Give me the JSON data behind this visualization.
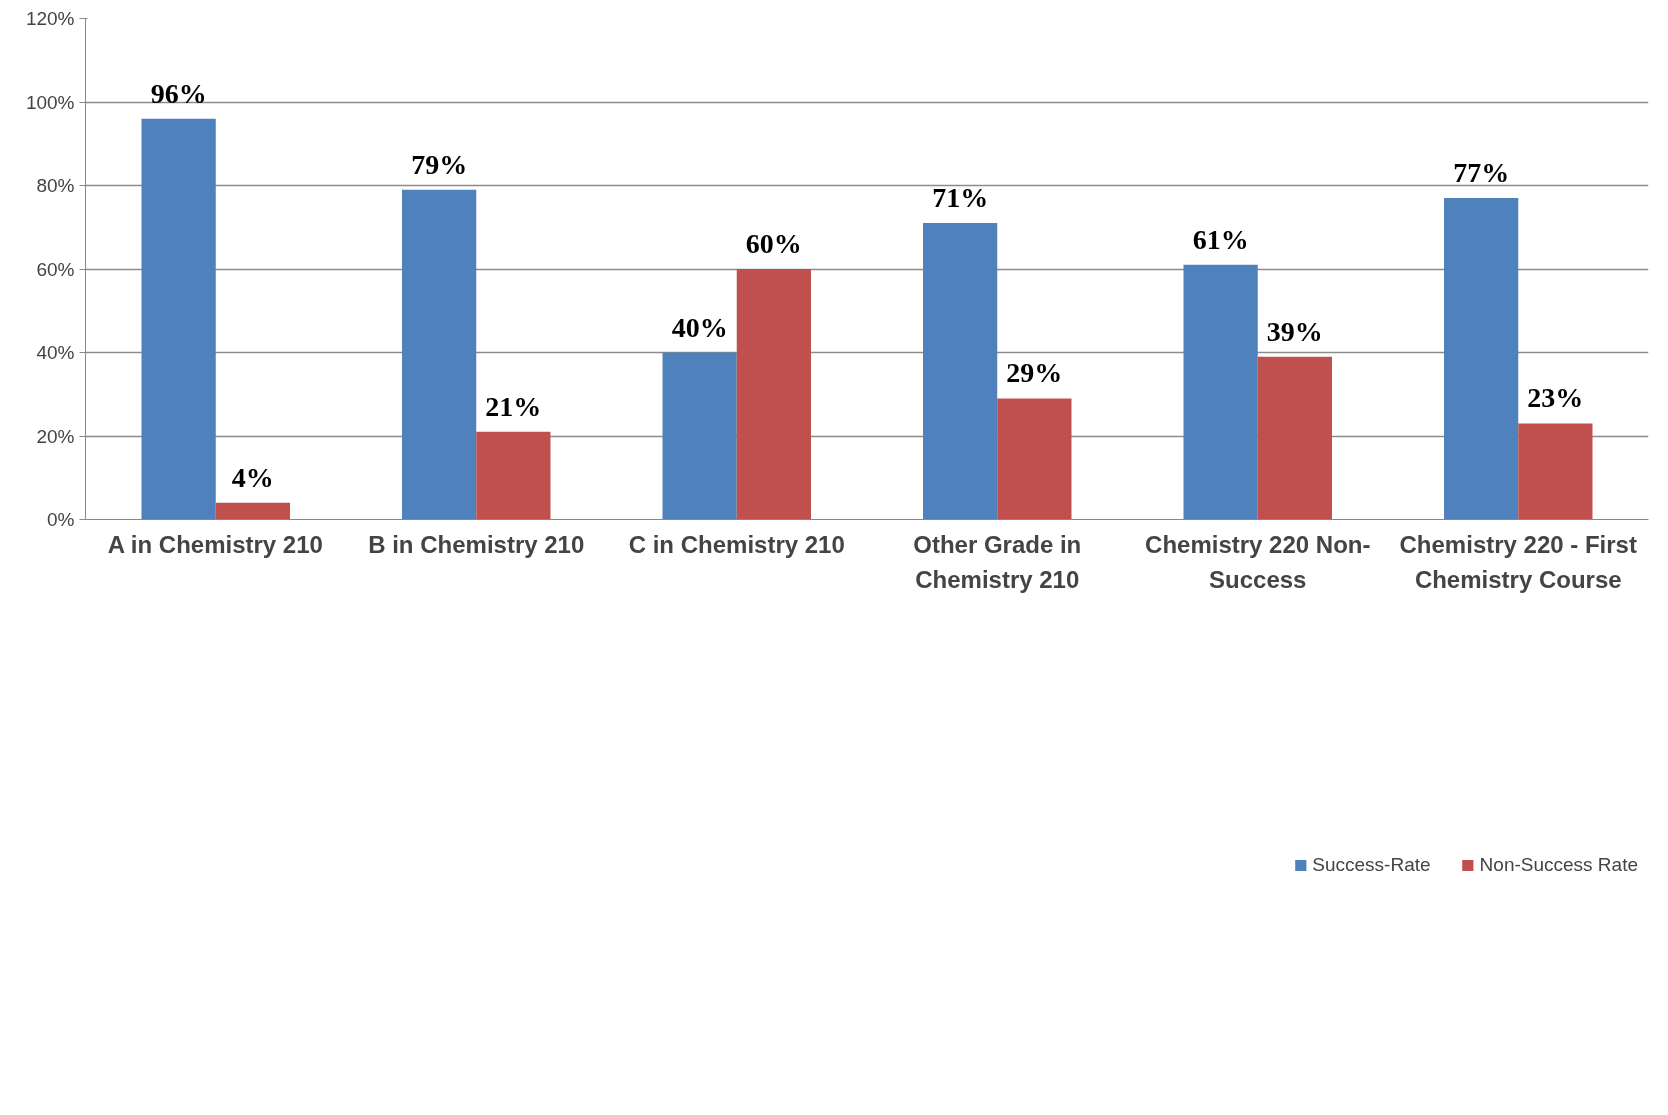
{
  "chart_data": {
    "type": "bar",
    "categories": [
      "A in Chemistry 210",
      "B in Chemistry 210",
      "C in Chemistry 210",
      "Other Grade in Chemistry 210",
      "Chemistry 220 Non-Success",
      "Chemistry 220 - First Chemistry Course"
    ],
    "series": [
      {
        "name": "Success-Rate",
        "color": "#4f81bd",
        "values": [
          96,
          79,
          40,
          71,
          61,
          77
        ],
        "value_labels": [
          "96%",
          "79%",
          "40%",
          "71%",
          "61%",
          "77%"
        ]
      },
      {
        "name": "Non-Success Rate",
        "color": "#c0504d",
        "values": [
          4,
          21,
          60,
          29,
          39,
          23
        ],
        "value_labels": [
          "4%",
          "21%",
          "60%",
          "29%",
          "39%",
          "23%"
        ]
      }
    ],
    "ylim": [
      0,
      120
    ],
    "yticks": [
      {
        "value": 0,
        "label": "0%"
      },
      {
        "value": 20,
        "label": "20%"
      },
      {
        "value": 40,
        "label": "40%"
      },
      {
        "value": 60,
        "label": "60%"
      },
      {
        "value": 80,
        "label": "80%"
      },
      {
        "value": 100,
        "label": "100%"
      },
      {
        "value": 120,
        "label": "120%"
      }
    ],
    "grid": "y",
    "legend": "bottom"
  }
}
